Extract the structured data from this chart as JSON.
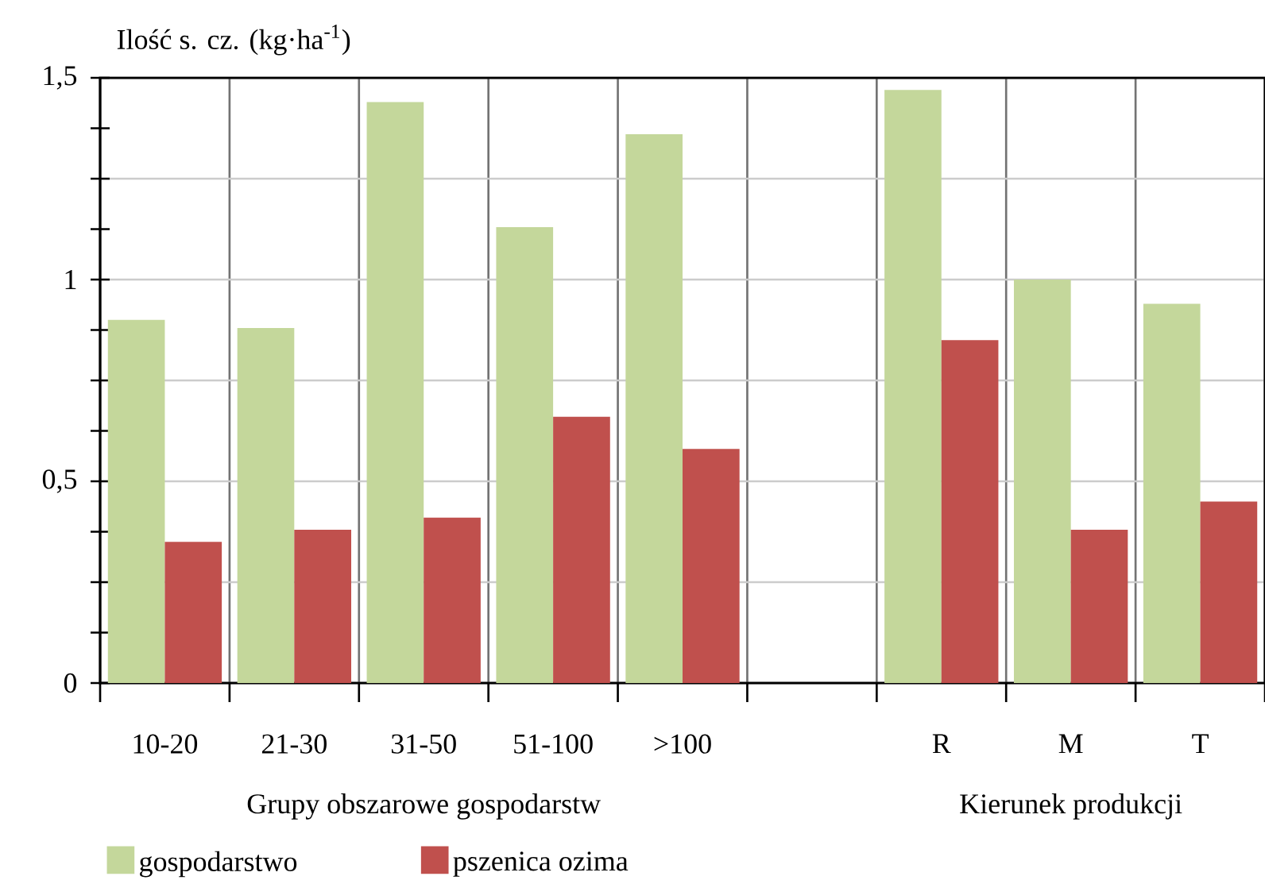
{
  "chart_data": {
    "type": "bar",
    "ylabel": "Ilość s. cz. (kg·ha$^{-1}$)",
    "categories": [
      "10-20",
      "21-30",
      "31-50",
      "51-100",
      ">100",
      null,
      "R",
      "M",
      "T"
    ],
    "series": [
      {
        "name": "gospodarstwo",
        "color": "#c4d79b",
        "values": [
          0.9,
          0.88,
          1.44,
          1.13,
          1.36,
          null,
          1.47,
          1.0,
          0.94
        ]
      },
      {
        "name": "pszenica ozima",
        "color": "#c0504d",
        "values": [
          0.35,
          0.38,
          0.41,
          0.66,
          0.58,
          null,
          0.85,
          0.38,
          0.45
        ]
      }
    ],
    "ylim": [
      0,
      1.5
    ],
    "yticks": [
      0,
      {
        "value": 0.25,
        "label": null
      },
      {
        "value": 0.5,
        "label": "0,5"
      },
      {
        "value": 0.75,
        "label": null
      },
      1,
      {
        "value": 1.25,
        "label": null
      },
      {
        "value": 1.5,
        "label": "1,5"
      }
    ],
    "annotations": [
      "Grupy obszarowe gospodarstw",
      "Kierunek produkcji"
    ],
    "grid": true,
    "legend": "bottom left"
  }
}
